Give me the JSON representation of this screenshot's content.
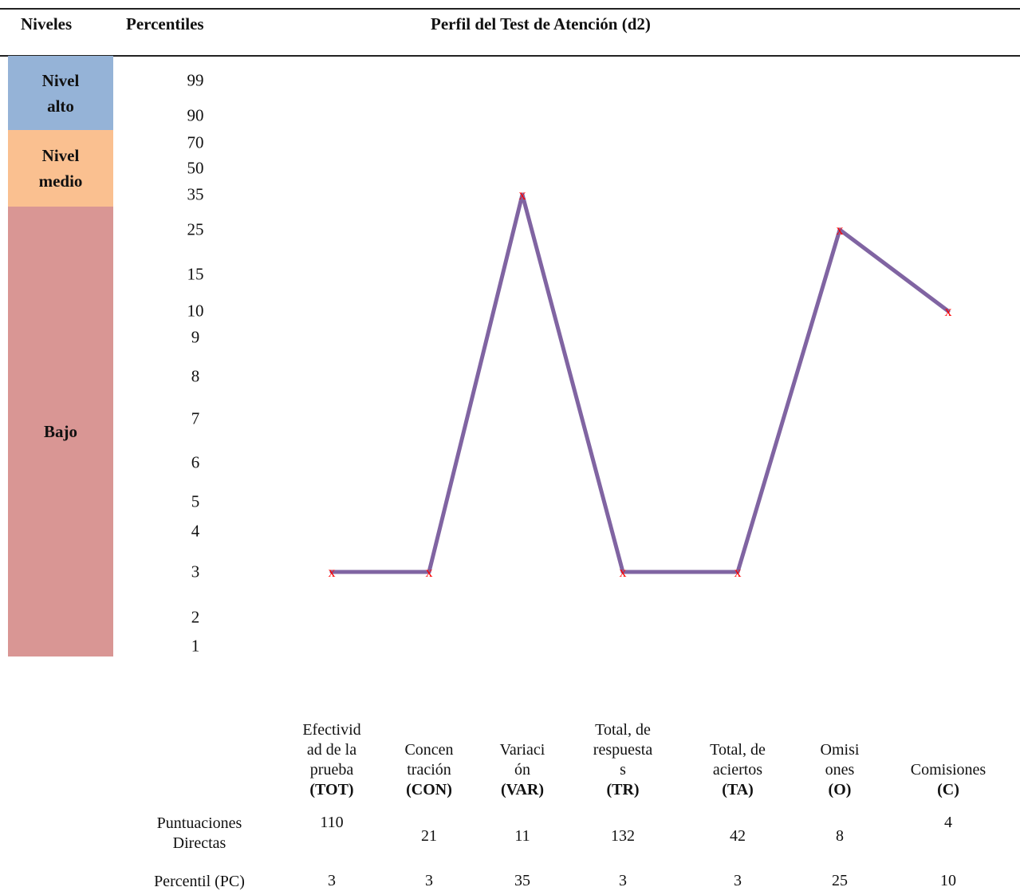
{
  "headers": {
    "niveles": "Niveles",
    "percentiles": "Percentiles",
    "title": "Perfil del Test de Atención (d2)"
  },
  "bands": [
    {
      "lines": [
        "Nivel",
        "alto"
      ],
      "color": "#95b3d7"
    },
    {
      "lines": [
        "Nivel",
        "medio"
      ],
      "color": "#fac090"
    },
    {
      "lines": [
        "Bajo"
      ],
      "color": "#d99694"
    }
  ],
  "chart_data": {
    "type": "line",
    "title": "Perfil del Test de Atención (d2)",
    "y_ticks": [
      "99",
      "90",
      "70",
      "50",
      "35",
      "25",
      "15",
      "10",
      "9",
      "8",
      "7",
      "6",
      "5",
      "4",
      "3",
      "2",
      "1"
    ],
    "categories": [
      {
        "lines": [
          "Efectivid",
          "ad de la",
          "prueba"
        ],
        "code": "(TOT)"
      },
      {
        "lines": [
          "Concen",
          "tración"
        ],
        "code": "(CON)"
      },
      {
        "lines": [
          "Variaci",
          "ón"
        ],
        "code": "(VAR)"
      },
      {
        "lines": [
          "Total, de",
          "respuesta",
          "s"
        ],
        "code": "(TR)"
      },
      {
        "lines": [
          "Total, de",
          "aciertos"
        ],
        "code": "(TA)"
      },
      {
        "lines": [
          "Omisi",
          "ones"
        ],
        "code": "(O)"
      },
      {
        "lines": [],
        "code_inline": "Comisiones",
        "code": "(C)"
      }
    ],
    "values": [
      3,
      3,
      35,
      3,
      3,
      25,
      10
    ],
    "marker_label": "x",
    "line_color": "#8064a2",
    "marker_color": "#ff0000"
  },
  "table": {
    "row_direct_label": [
      "Puntuaciones",
      "Directas"
    ],
    "row_direct": [
      "110",
      "21",
      "11",
      "132",
      "42",
      "8",
      "4"
    ],
    "row_pc_label": "Percentil (PC)",
    "row_pc": [
      "3",
      "3",
      "35",
      "3",
      "3",
      "25",
      "10"
    ]
  }
}
